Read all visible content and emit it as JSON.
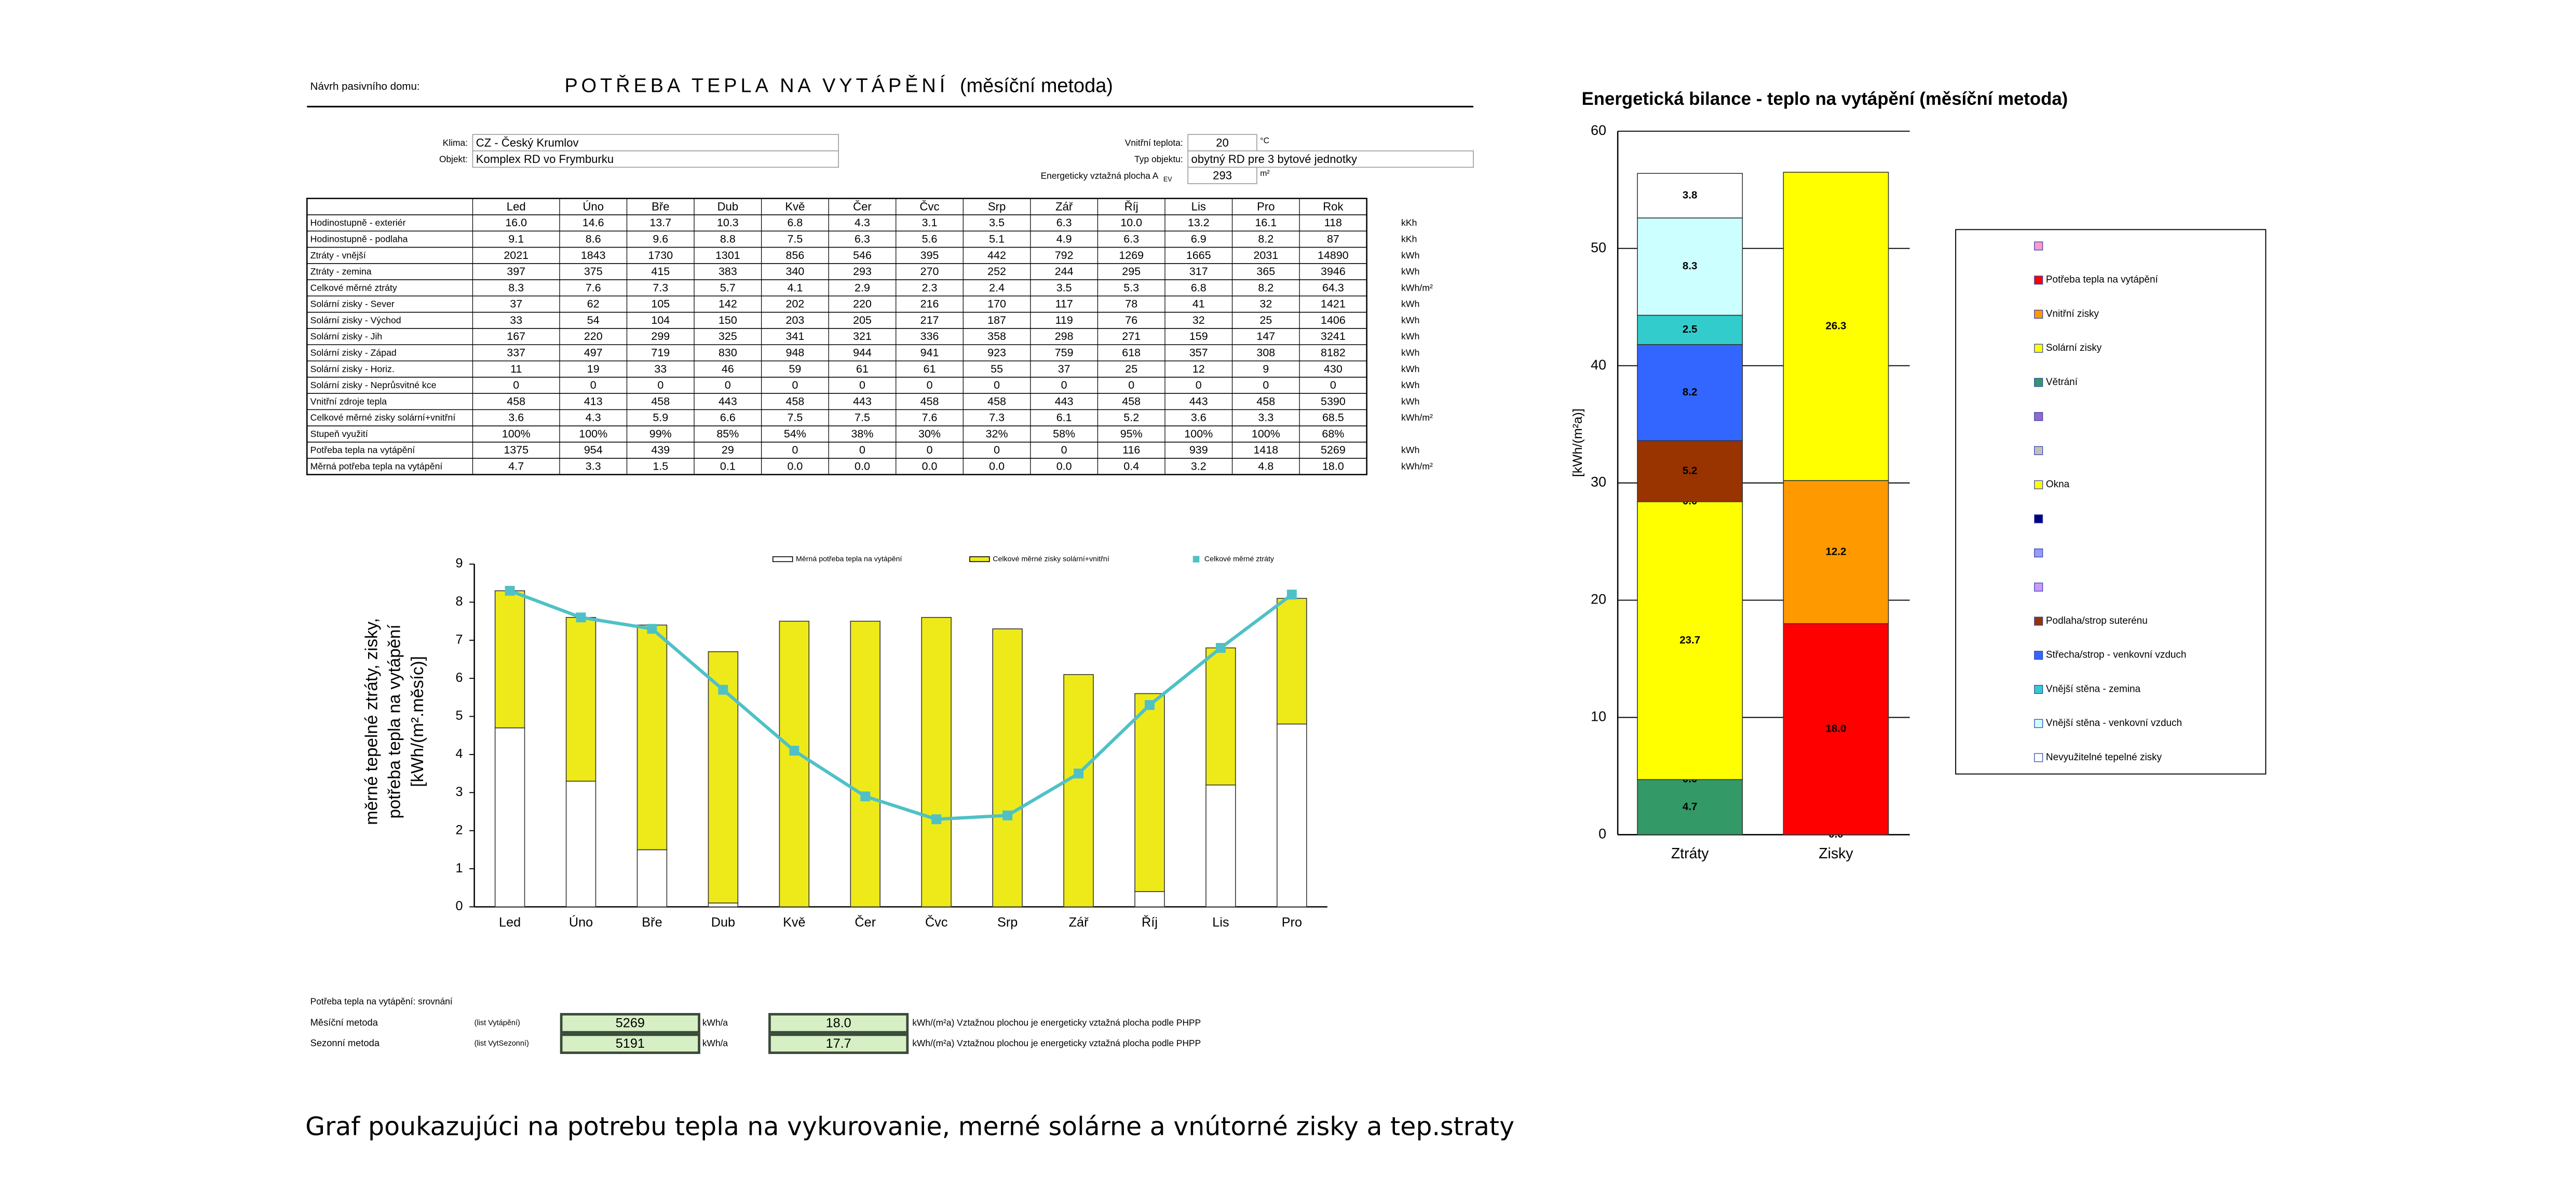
{
  "header": {
    "label": "Návrh pasivního domu:",
    "title": "POTŘEBA TEPLA NA VYTÁPĚNÍ",
    "subtitle": "(měsíční metoda)"
  },
  "inputs": [
    {
      "label": "Klima:",
      "value": "CZ - Český Krumlov"
    },
    {
      "label": "Objekt:",
      "value": "Komplex RD vo Frymburku"
    },
    {
      "label": "Vnitřní teplota:",
      "value": "20",
      "unit": "°C"
    },
    {
      "label": "Typ objektu:",
      "value": "obytný RD pre 3 bytové jednotky"
    },
    {
      "label": "Energeticky vztažná plocha A",
      "sub": "EV",
      "value": "293",
      "unit": "m²"
    }
  ],
  "table": {
    "columns": [
      "Led",
      "Úno",
      "Bře",
      "Dub",
      "Kvě",
      "Čer",
      "Čvc",
      "Srp",
      "Zář",
      "Říj",
      "Lis",
      "Pro",
      "Rok"
    ],
    "rows": [
      {
        "label": "Hodinostupně - exteriér",
        "values": [
          "16.0",
          "14.6",
          "13.7",
          "10.3",
          "6.8",
          "4.3",
          "3.1",
          "3.5",
          "6.3",
          "10.0",
          "13.2",
          "16.1",
          "118"
        ],
        "unit": "kKh"
      },
      {
        "label": "Hodinostupně - podlaha",
        "values": [
          "9.1",
          "8.6",
          "9.6",
          "8.8",
          "7.5",
          "6.3",
          "5.6",
          "5.1",
          "4.9",
          "6.3",
          "6.9",
          "8.2",
          "87"
        ],
        "unit": "kKh"
      },
      {
        "label": "Ztráty - vnější",
        "values": [
          "2021",
          "1843",
          "1730",
          "1301",
          "856",
          "546",
          "395",
          "442",
          "792",
          "1269",
          "1665",
          "2031",
          "14890"
        ],
        "unit": "kWh"
      },
      {
        "label": "Ztráty - zemina",
        "values": [
          "397",
          "375",
          "415",
          "383",
          "340",
          "293",
          "270",
          "252",
          "244",
          "295",
          "317",
          "365",
          "3946"
        ],
        "unit": "kWh"
      },
      {
        "label": "Celkové měrné ztráty",
        "values": [
          "8.3",
          "7.6",
          "7.3",
          "5.7",
          "4.1",
          "2.9",
          "2.3",
          "2.4",
          "3.5",
          "5.3",
          "6.8",
          "8.2",
          "64.3"
        ],
        "unit": "kWh/m²"
      },
      {
        "label": "Solární zisky - Sever",
        "values": [
          "37",
          "62",
          "105",
          "142",
          "202",
          "220",
          "216",
          "170",
          "117",
          "78",
          "41",
          "32",
          "1421"
        ],
        "unit": "kWh"
      },
      {
        "label": "Solární zisky - Východ",
        "values": [
          "33",
          "54",
          "104",
          "150",
          "203",
          "205",
          "217",
          "187",
          "119",
          "76",
          "32",
          "25",
          "1406"
        ],
        "unit": "kWh"
      },
      {
        "label": "Solární zisky - Jih",
        "values": [
          "167",
          "220",
          "299",
          "325",
          "341",
          "321",
          "336",
          "358",
          "298",
          "271",
          "159",
          "147",
          "3241"
        ],
        "unit": "kWh"
      },
      {
        "label": "Solární zisky - Západ",
        "values": [
          "337",
          "497",
          "719",
          "830",
          "948",
          "944",
          "941",
          "923",
          "759",
          "618",
          "357",
          "308",
          "8182"
        ],
        "unit": "kWh"
      },
      {
        "label": "Solární zisky - Horiz.",
        "values": [
          "11",
          "19",
          "33",
          "46",
          "59",
          "61",
          "61",
          "55",
          "37",
          "25",
          "12",
          "9",
          "430"
        ],
        "unit": "kWh"
      },
      {
        "label": "Solární zisky - Neprůsvitné kce",
        "values": [
          "0",
          "0",
          "0",
          "0",
          "0",
          "0",
          "0",
          "0",
          "0",
          "0",
          "0",
          "0",
          "0"
        ],
        "unit": "kWh"
      },
      {
        "label": "Vnitřní zdroje tepla",
        "values": [
          "458",
          "413",
          "458",
          "443",
          "458",
          "443",
          "458",
          "458",
          "443",
          "458",
          "443",
          "458",
          "5390"
        ],
        "unit": "kWh"
      },
      {
        "label": "Celkové měrné zisky solární+vnitřní",
        "values": [
          "3.6",
          "4.3",
          "5.9",
          "6.6",
          "7.5",
          "7.5",
          "7.6",
          "7.3",
          "6.1",
          "5.2",
          "3.6",
          "3.3",
          "68.5"
        ],
        "unit": "kWh/m²"
      },
      {
        "label": "Stupeň využití",
        "values": [
          "100%",
          "100%",
          "99%",
          "85%",
          "54%",
          "38%",
          "30%",
          "32%",
          "58%",
          "95%",
          "100%",
          "100%",
          "68%"
        ]
      },
      {
        "label": "Potřeba tepla na vytápění",
        "values": [
          "1375",
          "954",
          "439",
          "29",
          "0",
          "0",
          "0",
          "0",
          "0",
          "116",
          "939",
          "1418",
          "5269"
        ],
        "unit": "kWh"
      },
      {
        "label": "Měrná potřeba tepla na vytápění",
        "values": [
          "4.7",
          "3.3",
          "1.5",
          "0.1",
          "0.0",
          "0.0",
          "0.0",
          "0.0",
          "0.0",
          "0.4",
          "3.2",
          "4.8",
          "18.0"
        ],
        "unit": "kWh/m²"
      }
    ]
  },
  "chart_data": [
    {
      "type": "bar",
      "stacked": true,
      "legend": "top",
      "y_label": [
        "měrné tepelné ztráty, zisky,",
        "potřeba tepla na vytápění",
        "[kWh/(m².měsíc)]"
      ],
      "categories": [
        "Led",
        "Úno",
        "Bře",
        "Dub",
        "Kvě",
        "Čer",
        "Čvc",
        "Srp",
        "Zář",
        "Říj",
        "Lis",
        "Pro"
      ],
      "ylim": [
        0,
        9
      ],
      "yticks": [
        0,
        1,
        2,
        3,
        4,
        5,
        6,
        7,
        8,
        9
      ],
      "series": [
        {
          "name": "Měrná potřeba tepla na vytápění",
          "type": "bar",
          "color": "#ffffff",
          "values": [
            4.7,
            3.3,
            1.5,
            0.1,
            0.0,
            0.0,
            0.0,
            0.0,
            0.0,
            0.4,
            3.2,
            4.8
          ]
        },
        {
          "name": "Celkové měrné zisky solární+vnitřní",
          "type": "bar",
          "color": "#eeea1a",
          "values": [
            3.6,
            4.3,
            5.9,
            6.6,
            7.5,
            7.5,
            7.6,
            7.3,
            6.1,
            5.2,
            3.6,
            3.3
          ]
        },
        {
          "name": "Celkové měrné ztráty",
          "type": "line",
          "color": "#4fc1c6",
          "values": [
            8.3,
            7.6,
            7.3,
            5.7,
            4.1,
            2.9,
            2.3,
            2.4,
            3.5,
            5.3,
            6.8,
            8.2
          ]
        }
      ]
    },
    {
      "type": "bar",
      "stacked": true,
      "legend": "right",
      "data_labels": true,
      "grid": true,
      "title": "Energetická bilance - teplo na vytápění (měsíční metoda)",
      "y_label": "[kWh/(m²a)]",
      "categories": [
        "Ztráty",
        "Zisky"
      ],
      "ylim": [
        0,
        60
      ],
      "yticks": [
        0,
        10,
        20,
        30,
        40,
        50,
        60
      ],
      "series": [
        {
          "color": "#ff99cc",
          "values": [
            null,
            0
          ],
          "value_labels": [
            null,
            "0.0"
          ]
        },
        {
          "name": "Potřeba tepla na vytápění",
          "color": "#ff0000",
          "values": [
            null,
            18.0
          ],
          "value_labels": [
            null,
            "18.0"
          ]
        },
        {
          "name": "Vnitřní zisky",
          "color": "#ff9900",
          "values": [
            null,
            12.2
          ]
        },
        {
          "name": "Solární zisky",
          "color": "#ffff00",
          "values": [
            null,
            26.3
          ]
        },
        {
          "name": "Větrání",
          "color": "#339966",
          "values": [
            4.7,
            null
          ]
        },
        {
          "color": "#9966cc",
          "values": [
            0,
            null
          ],
          "value_labels": [
            "0.0",
            null
          ]
        },
        {
          "color": "#c0c0c0",
          "values": [
            null,
            null
          ]
        },
        {
          "name": "Okna",
          "color": "#ffff00",
          "values": [
            23.7,
            null
          ]
        },
        {
          "color": "#000080",
          "values": [
            0,
            null
          ],
          "value_labels": [
            "0.0",
            null
          ]
        },
        {
          "color": "#9999ff",
          "values": [
            null,
            null
          ]
        },
        {
          "color": "#cc99ff",
          "values": [
            null,
            null
          ]
        },
        {
          "name": "Podlaha/strop suterénu",
          "color": "#993300",
          "values": [
            5.2,
            null
          ]
        },
        {
          "name": "Střecha/strop - venkovní vzduch",
          "color": "#3366ff",
          "values": [
            8.2,
            null
          ]
        },
        {
          "name": "Vnější stěna - zemina",
          "color": "#33cccc",
          "values": [
            2.5,
            null
          ]
        },
        {
          "name": "Vnější stěna - venkovní vzduch",
          "color": "#ccffff",
          "values": [
            8.3,
            null
          ]
        },
        {
          "name": "Nevyužitelné tepelné zisky",
          "color": "#ffffff",
          "values": [
            3.8,
            null
          ]
        }
      ]
    }
  ],
  "comparison": {
    "title": "Potřeba tepla na vytápění: srovnání",
    "rows": [
      {
        "method": "Měsíční metoda",
        "source": "(list Vytápění)",
        "value": "5269",
        "unit": "kWh/a",
        "value2": "18.0",
        "note": "kWh/(m²a) Vztažnou plochou je energeticky vztažná plocha podle PHPP"
      },
      {
        "method": "Sezonní metoda",
        "source": "(list VytSezonní)",
        "value": "5191",
        "unit": "kWh/a",
        "value2": "17.7",
        "note": "kWh/(m²a) Vztažnou plochou je energeticky vztažná plocha podle PHPP"
      }
    ]
  },
  "caption": "Graf poukazujúci na potrebu tepla na vykurovanie, merné solárne a vnútorné zisky a tep.straty"
}
